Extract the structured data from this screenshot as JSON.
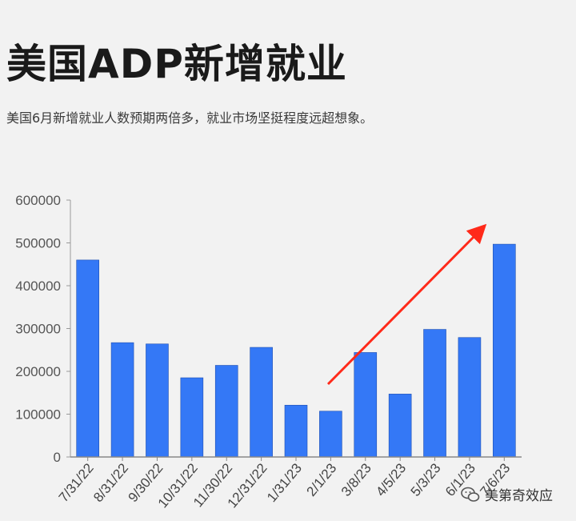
{
  "title": "美国ADP新增就业",
  "subtitle": "美国6月新增就业人数预期两倍多，就业市场坚挺程度远超想象。",
  "watermark": "美第奇效应",
  "chart_data": {
    "type": "bar",
    "title": "美国ADP新增就业",
    "categories": [
      "7/31/22",
      "8/31/22",
      "9/30/22",
      "10/31/22",
      "11/30/22",
      "12/31/22",
      "1/31/23",
      "2/1/23",
      "3/8/23",
      "4/5/23",
      "5/3/23",
      "6/1/23",
      "7/6/23"
    ],
    "values": [
      460000,
      267000,
      264000,
      185000,
      214000,
      256000,
      121000,
      107000,
      244000,
      147000,
      298000,
      279000,
      497000
    ],
    "ylim": [
      0,
      600000
    ],
    "yticks": [
      0,
      100000,
      200000,
      300000,
      400000,
      500000,
      600000
    ],
    "bar_color": "#3478f6",
    "annotation_arrow_color": "#ff2a1a",
    "grid": false,
    "legend": "none"
  }
}
